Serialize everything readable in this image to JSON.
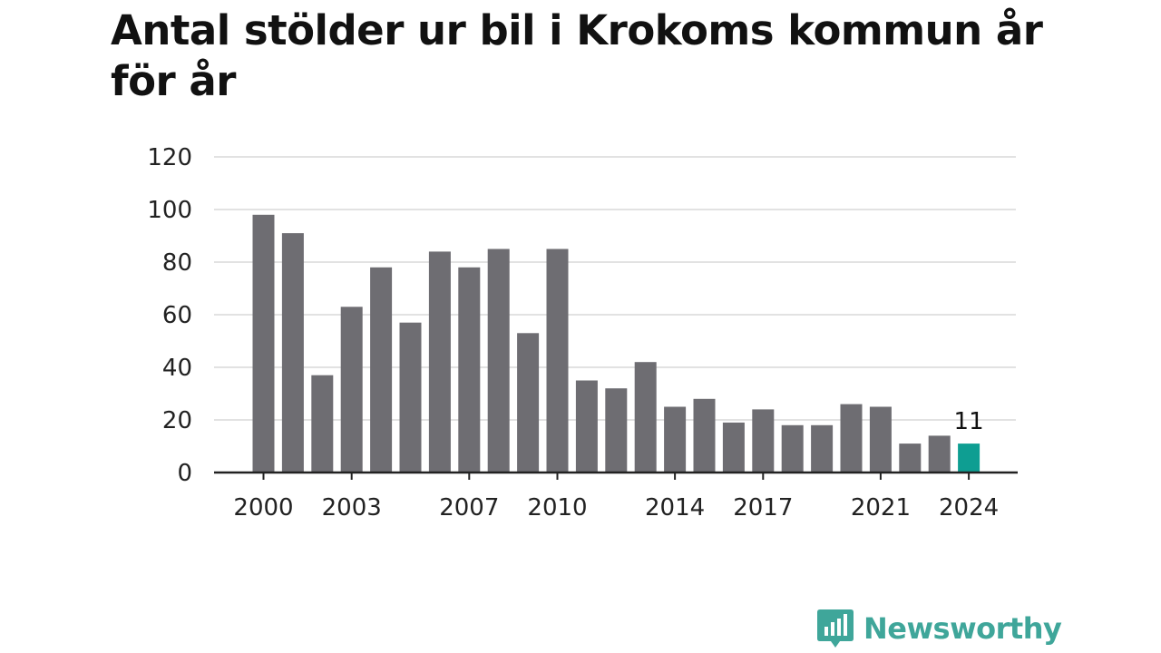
{
  "chart_data": {
    "type": "bar",
    "title": "Antal stölder ur bil i Krokoms kommun år för år",
    "xlabel": "",
    "ylabel": "",
    "ylim": [
      0,
      120
    ],
    "yticks": [
      0,
      20,
      40,
      60,
      80,
      100,
      120
    ],
    "grid": true,
    "categories": [
      "2000",
      "2001",
      "2002",
      "2003",
      "2004",
      "2005",
      "2006",
      "2007",
      "2008",
      "2009",
      "2010",
      "2011",
      "2012",
      "2013",
      "2014",
      "2015",
      "2016",
      "2017",
      "2018",
      "2019",
      "2020",
      "2021",
      "2022",
      "2023",
      "2024"
    ],
    "xtick_labels": [
      "2000",
      "2003",
      "2007",
      "2010",
      "2014",
      "2017",
      "2021",
      "2024"
    ],
    "values": [
      98,
      91,
      37,
      63,
      78,
      57,
      84,
      78,
      85,
      53,
      85,
      35,
      32,
      42,
      25,
      28,
      19,
      24,
      18,
      18,
      26,
      25,
      11,
      14,
      11
    ],
    "highlight_category": "2024",
    "data_labels": [
      {
        "category": "2024",
        "text": "11"
      }
    ],
    "colors": {
      "bar": "#6e6d72",
      "highlight": "#0e9e92",
      "grid": "#d9d9d9",
      "axis": "#222222",
      "text": "#222222"
    }
  },
  "logo": {
    "text": "Newsworthy",
    "color": "#3fa69a",
    "icon": "newsworthy-chart-bubble-icon"
  }
}
